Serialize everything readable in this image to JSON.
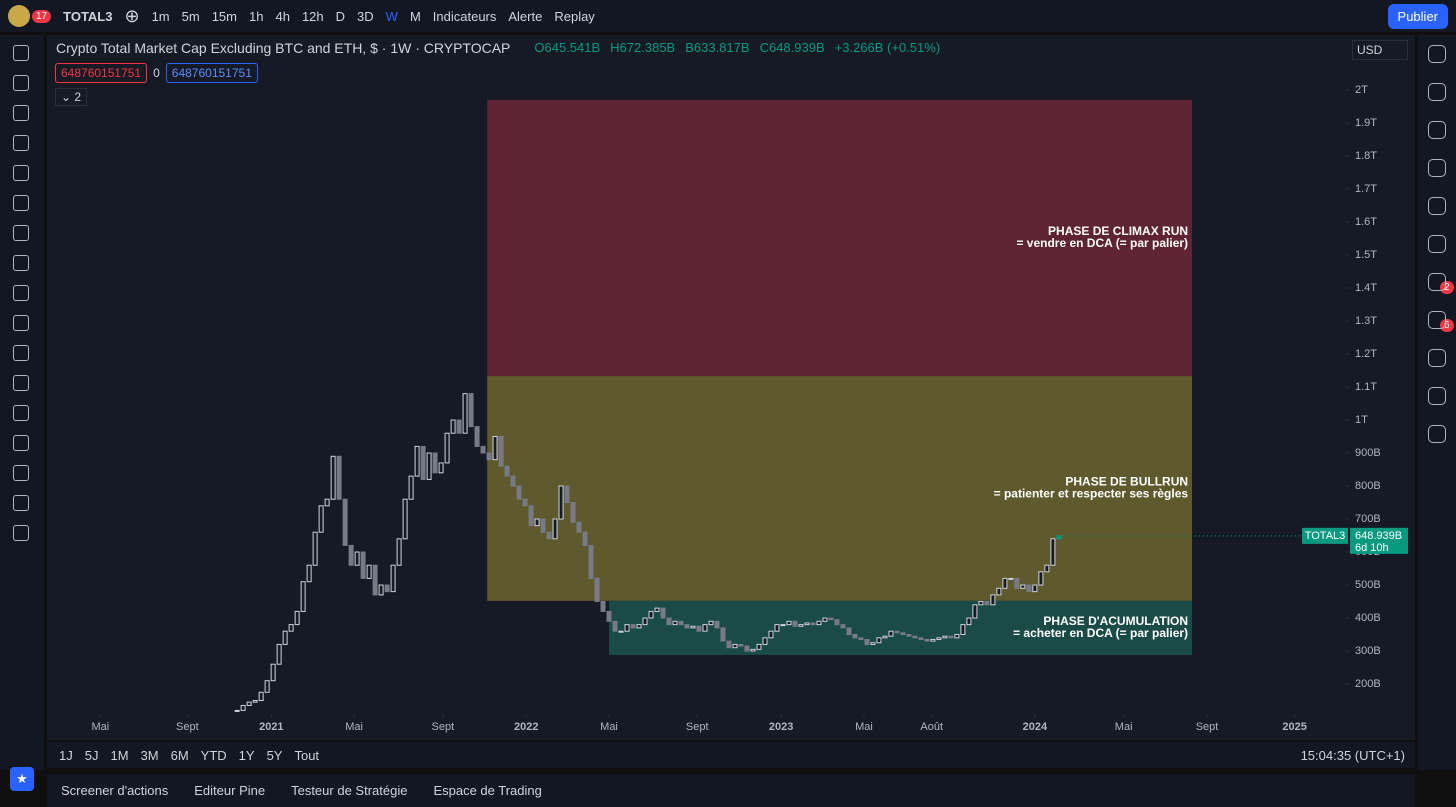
{
  "toolbar": {
    "badge": "17",
    "symbol": "TOTAL3",
    "intervals": [
      "1m",
      "5m",
      "15m",
      "1h",
      "4h",
      "12h",
      "D",
      "3D",
      "W",
      "M"
    ],
    "indicators": "Indicateurs",
    "alert": "Alerte",
    "replay": "Replay",
    "publish": "Publier"
  },
  "legend": {
    "title": "Crypto Total Market Cap Excluding BTC and ETH, $ · 1W · CRYPTOCAP",
    "open": "O645.541B",
    "high": "H672.385B",
    "low": "B633.817B",
    "close": "C648.939B",
    "change": "+3.266B (+0.51%)",
    "bid": "648760151751",
    "spread": "0",
    "ask": "648760151751",
    "collapse": "2",
    "currency": "USD"
  },
  "right_sidebar": {
    "chat_badge": "2",
    "ideas_badge": "6"
  },
  "chart_data": {
    "type": "candlestick",
    "values": [
      120,
      135,
      145,
      150,
      175,
      210,
      260,
      320,
      360,
      380,
      420,
      510,
      560,
      660,
      740,
      760,
      890,
      760,
      620,
      560,
      600,
      520,
      560,
      470,
      500,
      480,
      560,
      640,
      760,
      830,
      920,
      820,
      900,
      840,
      870,
      960,
      1000,
      960,
      1080,
      980,
      920,
      900,
      880,
      950,
      860,
      830,
      800,
      760,
      740,
      680,
      700,
      660,
      640,
      700,
      800,
      750,
      690,
      660,
      620,
      520,
      450,
      420,
      390,
      360,
      360,
      380,
      370,
      380,
      400,
      420,
      430,
      400,
      380,
      390,
      380,
      370,
      375,
      360,
      380,
      390,
      370,
      330,
      310,
      320,
      315,
      300,
      305,
      320,
      340,
      360,
      380,
      380,
      390,
      375,
      380,
      385,
      380,
      390,
      400,
      395,
      380,
      370,
      350,
      340,
      335,
      320,
      325,
      340,
      345,
      360,
      355,
      350,
      345,
      340,
      335,
      330,
      335,
      340,
      345,
      340,
      350,
      380,
      400,
      440,
      450,
      440,
      470,
      490,
      520,
      520,
      490,
      500,
      480,
      500,
      540,
      560,
      640,
      648.939
    ],
    "up_color": "#d1d4dc",
    "down_color": "#787b86",
    "last_color": "#089981",
    "ylim": [
      106.1,
      2166.7
    ],
    "yticks": [
      {
        "value": 200,
        "label": "200B"
      },
      {
        "value": 300,
        "label": "300B"
      },
      {
        "value": 400,
        "label": "400B"
      },
      {
        "value": 500,
        "label": "500B"
      },
      {
        "value": 600,
        "label": "600B"
      },
      {
        "value": 700,
        "label": "700B"
      },
      {
        "value": 800,
        "label": "800B"
      },
      {
        "value": 900,
        "label": "900B"
      },
      {
        "value": 1000,
        "label": "1T"
      },
      {
        "value": 1100,
        "label": "1.1T"
      },
      {
        "value": 1200,
        "label": "1.2T"
      },
      {
        "value": 1300,
        "label": "1.3T"
      },
      {
        "value": 1400,
        "label": "1.4T"
      },
      {
        "value": 1500,
        "label": "1.5T"
      },
      {
        "value": 1600,
        "label": "1.6T"
      },
      {
        "value": 1700,
        "label": "1.7T"
      },
      {
        "value": 1800,
        "label": "1.8T"
      },
      {
        "value": 1900,
        "label": "1.9T"
      },
      {
        "value": 2000,
        "label": "2T"
      }
    ],
    "xlim": [
      -31.7,
      184.7
    ],
    "xticks": [
      {
        "value": -22.8,
        "label": "Mai"
      },
      {
        "value": -8.3,
        "label": "Sept"
      },
      {
        "value": 5.7,
        "label": "2021"
      },
      {
        "value": 19.5,
        "label": "Mai"
      },
      {
        "value": 34.3,
        "label": "Sept"
      },
      {
        "value": 48.2,
        "label": "2022"
      },
      {
        "value": 62,
        "label": "Mai"
      },
      {
        "value": 76.7,
        "label": "Sept"
      },
      {
        "value": 90.7,
        "label": "2023"
      },
      {
        "value": 104.5,
        "label": "Mai"
      },
      {
        "value": 115.8,
        "label": "Août"
      },
      {
        "value": 133,
        "label": "2024"
      },
      {
        "value": 147.8,
        "label": "Mai"
      },
      {
        "value": 161.7,
        "label": "Sept"
      },
      {
        "value": 176.3,
        "label": "2025"
      }
    ],
    "zones": [
      {
        "title": "PHASE DE CLIMAX RUN",
        "subtitle": "= vendre en DCA (= par palier)",
        "color": "#5e2434",
        "x": [
          41.7,
          159.2
        ],
        "y": [
          1133,
          1970
        ]
      },
      {
        "title": "PHASE DE BULLRUN",
        "subtitle": "= patienter et respecter ses règles",
        "color": "#5f5a2e",
        "x": [
          41.7,
          159.2
        ],
        "y": [
          452,
          1133
        ]
      },
      {
        "title": "PHASE D'ACUMULATION",
        "subtitle": "= acheter en DCA (= par palier)",
        "color": "#1a4b47",
        "x": [
          62,
          159.2
        ],
        "y": [
          288,
          452
        ]
      }
    ],
    "last_price": {
      "symbol": "TOTAL3",
      "label": "648.939B",
      "countdown": "6d 10h"
    }
  },
  "range_bar": {
    "ranges": [
      "1J",
      "5J",
      "1M",
      "3M",
      "6M",
      "YTD",
      "1Y",
      "5Y",
      "Tout"
    ],
    "clock": "15:04:35 (UTC+1)"
  },
  "bottom_panel": {
    "tabs": [
      "Screener d'actions",
      "Editeur Pine",
      "Testeur de Stratégie",
      "Espace de Trading"
    ]
  }
}
